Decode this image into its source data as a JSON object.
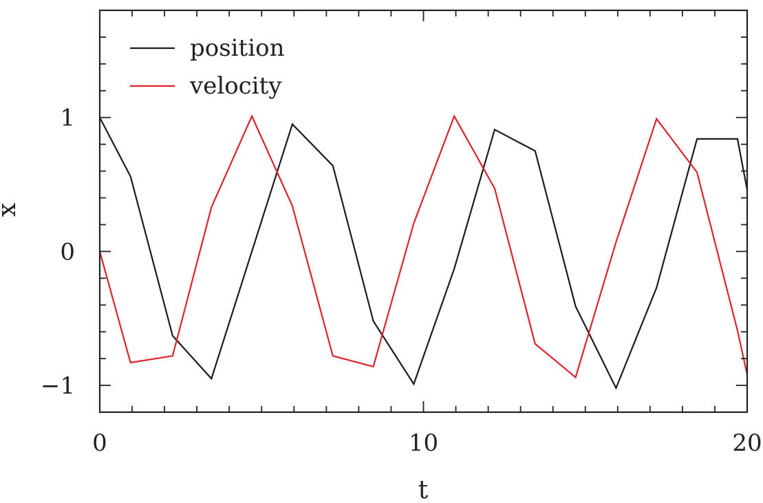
{
  "chart_data": {
    "type": "line",
    "title": "",
    "xlabel": "t",
    "ylabel": "x",
    "xlim": [
      0,
      20
    ],
    "ylim": [
      -1.2,
      1.8
    ],
    "xticks": [
      0,
      10,
      20
    ],
    "xtick_labels": [
      "0",
      "10",
      "20"
    ],
    "yticks": [
      -1,
      0,
      1
    ],
    "ytick_labels": [
      "−1",
      "0",
      "1"
    ],
    "x_minor_step": 1,
    "y_minor_step": 0.2,
    "grid": false,
    "legend": "top-left",
    "series": [
      {
        "name": "position",
        "color": "#1a1a1a",
        "x": [
          0,
          0.95,
          2.25,
          3.45,
          4.7,
          5.95,
          7.2,
          8.45,
          9.7,
          10.95,
          12.2,
          13.45,
          14.7,
          15.95,
          17.2,
          18.45,
          19.7,
          20
        ],
        "y": [
          1.0,
          0.56,
          -0.63,
          -0.95,
          0.0,
          0.95,
          0.64,
          -0.52,
          -0.99,
          -0.13,
          0.91,
          0.75,
          -0.41,
          -1.02,
          -0.27,
          0.84,
          0.84,
          0.46
        ]
      },
      {
        "name": "velocity",
        "color": "#e0212b",
        "x": [
          0,
          0.95,
          2.25,
          3.45,
          4.7,
          5.95,
          7.2,
          8.45,
          9.7,
          10.95,
          12.2,
          13.45,
          14.7,
          15.95,
          17.2,
          18.45,
          19.7,
          20
        ],
        "y": [
          0.0,
          -0.83,
          -0.78,
          0.33,
          1.01,
          0.34,
          -0.78,
          -0.86,
          0.21,
          1.01,
          0.47,
          -0.69,
          -0.94,
          0.07,
          0.99,
          0.59,
          -0.59,
          -0.92
        ]
      }
    ]
  }
}
